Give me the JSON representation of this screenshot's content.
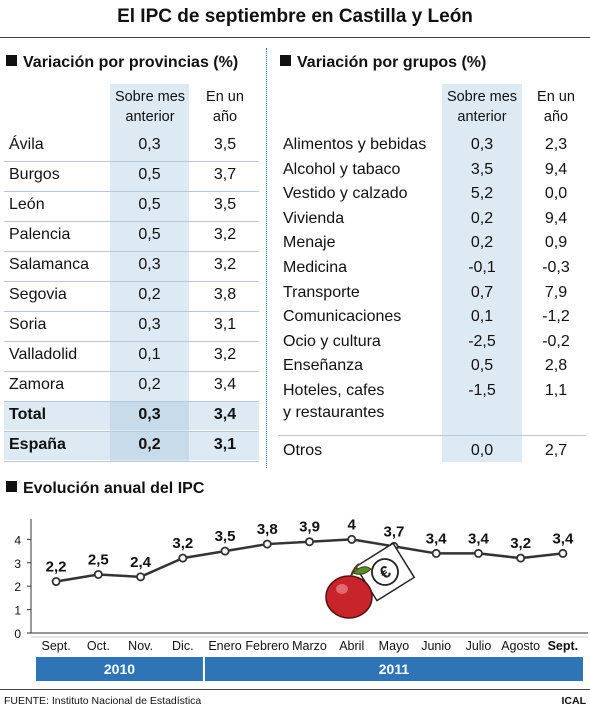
{
  "title": "El IPC de septiembre en Castilla y León",
  "provincias": {
    "heading": "Variación por provincias (%)",
    "col_mes": [
      "Sobre mes",
      "anterior"
    ],
    "col_anio": [
      "En un",
      "año"
    ],
    "rows": [
      {
        "name": "Ávila",
        "mes": "0,3",
        "anio": "3,5"
      },
      {
        "name": "Burgos",
        "mes": "0,5",
        "anio": "3,7"
      },
      {
        "name": "León",
        "mes": "0,5",
        "anio": "3,5"
      },
      {
        "name": "Palencia",
        "mes": "0,5",
        "anio": "3,2"
      },
      {
        "name": "Salamanca",
        "mes": "0,3",
        "anio": "3,2"
      },
      {
        "name": "Segovia",
        "mes": "0,2",
        "anio": "3,8"
      },
      {
        "name": "Soria",
        "mes": "0,3",
        "anio": "3,1"
      },
      {
        "name": "Valladolid",
        "mes": "0,1",
        "anio": "3,2"
      },
      {
        "name": "Zamora",
        "mes": "0,2",
        "anio": "3,4"
      },
      {
        "name": "Total",
        "mes": "0,3",
        "anio": "3,4"
      },
      {
        "name": "España",
        "mes": "0,2",
        "anio": "3,1"
      }
    ]
  },
  "grupos": {
    "heading": "Variación por grupos (%)",
    "col_mes": [
      "Sobre mes",
      "anterior"
    ],
    "col_anio": [
      "En un",
      "año"
    ],
    "rows": [
      {
        "name": "Alimentos y bebidas",
        "mes": "0,3",
        "anio": "2,3"
      },
      {
        "name": "Alcohol y tabaco",
        "mes": "3,5",
        "anio": "9,4"
      },
      {
        "name": "Vestido y calzado",
        "mes": "5,2",
        "anio": "0,0"
      },
      {
        "name": "Vivienda",
        "mes": "0,2",
        "anio": "9,4"
      },
      {
        "name": "Menaje",
        "mes": "0,2",
        "anio": "0,9"
      },
      {
        "name": "Medicina",
        "mes": "-0,1",
        "anio": "-0,3"
      },
      {
        "name": "Transporte",
        "mes": "0,7",
        "anio": "7,9"
      },
      {
        "name": "Comunicaciones",
        "mes": "0,1",
        "anio": "-1,2"
      },
      {
        "name": "Ocio y cultura",
        "mes": "-2,5",
        "anio": "-0,2"
      },
      {
        "name": "Enseñanza",
        "mes": "0,5",
        "anio": "2,8"
      },
      {
        "name": "Hoteles, cafes",
        "name2": "y restaurantes",
        "mes": "-1,5",
        "anio": "1,1"
      },
      {
        "name": "Otros",
        "mes": "0,0",
        "anio": "2,7"
      }
    ]
  },
  "chart_data": {
    "type": "line",
    "title": "Evolución anual del IPC",
    "categories": [
      "Sept.",
      "Oct.",
      "Nov.",
      "Dic.",
      "Enero",
      "Febrero",
      "Marzo",
      "Abril",
      "Mayo",
      "Junio",
      "Julio",
      "Agosto",
      "Sept."
    ],
    "values": [
      2.2,
      2.5,
      2.4,
      3.2,
      3.5,
      3.8,
      3.9,
      4,
      3.7,
      3.4,
      3.4,
      3.2,
      3.4
    ],
    "labels": [
      "2,2",
      "2,5",
      "2,4",
      "3,2",
      "3,5",
      "3,8",
      "3,9",
      "4",
      "3,7",
      "3,4",
      "3,4",
      "3,2",
      "3,4"
    ],
    "yticks": [
      "0",
      "1",
      "2",
      "3",
      "4"
    ],
    "ylim": [
      0,
      4.7
    ],
    "years": [
      {
        "label": "2010",
        "from": 0,
        "to": 3
      },
      {
        "label": "2011",
        "from": 4,
        "to": 12
      }
    ],
    "line_color": "#333333",
    "year_band_color": "#2f74b5"
  },
  "footer": {
    "source": "FUENTE: Instituto Nacional de Estadística",
    "credit": "ICAL"
  }
}
